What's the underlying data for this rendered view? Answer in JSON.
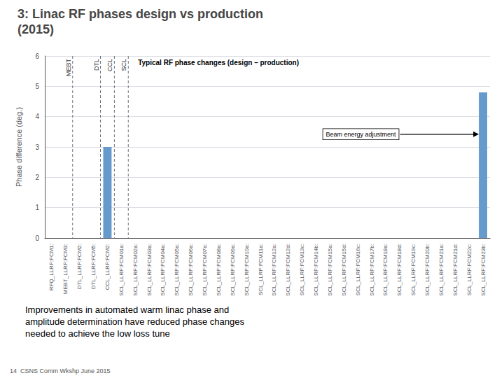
{
  "chart_data": {
    "type": "bar",
    "title": "3: Linac RF phases design vs production",
    "subtitle": "(2015)",
    "ylabel": "Phase difference (deg.)",
    "categories": [
      "RFQ_LLRF:FCM1:",
      "MEBT_LLRF:FCM3:",
      "DTL_LLRF:FCM2:",
      "DTL_LLRF:FCM5:",
      "CCL_LLRF:FCM2:",
      "SCL_LLRF:FCM01a:",
      "SCL_LLRF:FCM02a:",
      "SCL_LLRF:FCM03a:",
      "SCL_LLRF:FCM04a:",
      "SCL_LLRF:FCM05a:",
      "SCL_LLRF:FCM06a:",
      "SCL_LLRF:FCM07a:",
      "SCL_LLRF:FCM08a:",
      "SCL_LLRF:FCM09a:",
      "SCL_LLRF:FCM10a:",
      "SCL_LLRF:FCM11a:",
      "SCL_LLRF:FCM12a:",
      "SCL_LLRF:FCM12d:",
      "SCL_LLRF:FCM13c:",
      "SCL_LLRF:FCM14b:",
      "SCL_LLRF:FCM15a:",
      "SCL_LLRF:FCM15d:",
      "SCL_LLRF:FCM16c:",
      "SCL_LLRF:FCM17b:",
      "SCL_LLRF:FCM18a:",
      "SCL_LLRF:FCM18d:",
      "SCL_LLRF:FCM19c:",
      "SCL_LLRF:FCM20b:",
      "SCL_LLRF:FCM21a:",
      "SCL_LLRF:FCM21d:",
      "SCL_LLRF:FCM22c:",
      "SCL_LLRF:FCM23b:"
    ],
    "values": [
      0,
      0,
      0,
      0,
      3.0,
      0,
      0,
      0,
      0,
      0,
      0,
      0,
      0,
      0,
      0,
      0,
      0,
      0,
      0,
      0,
      0,
      0,
      0,
      0,
      0,
      0,
      0,
      0,
      0,
      0,
      0,
      4.8
    ],
    "color": "#6699cc",
    "ylim": [
      0,
      6
    ],
    "yticks": [
      0,
      1,
      2,
      3,
      4,
      5,
      6
    ],
    "grid": true,
    "annotations": [
      "Typical RF phase changes (design – production)",
      "Beam energy adjustment",
      "MEBT",
      "DTL",
      "CCL",
      "SCL",
      "Improvements in automated warm linac phase and\namplitude determination have reduced phase changes\nneeded to achieve the low loss tune",
      "14  CSNS Comm Wkshp June 2015"
    ]
  }
}
